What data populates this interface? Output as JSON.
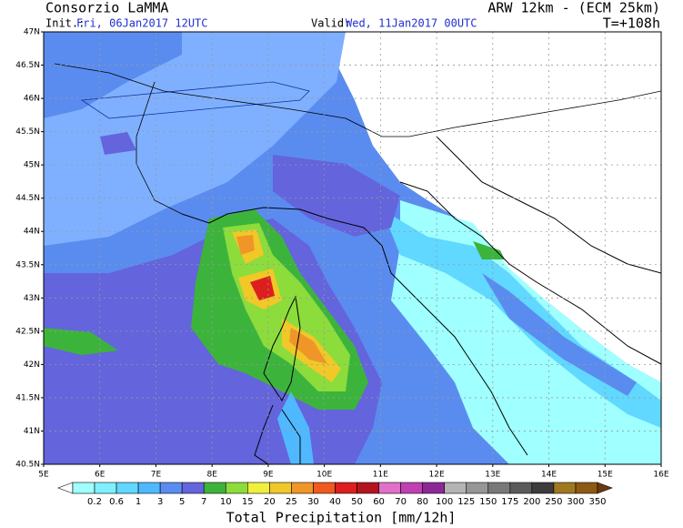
{
  "header": {
    "title": "Consorzio LaMMA",
    "init_label": "Init.:",
    "init": "Fri, 06Jan2017 12UTC",
    "model": "ARW 12km - (ECM 25km)",
    "valid_label": "Valid:",
    "valid": "Wed, 11Jan2017 00UTC",
    "lead": "T=+108h"
  },
  "axes": {
    "lat_labels": [
      "47N",
      "46.5N",
      "46N",
      "45.5N",
      "45N",
      "44.5N",
      "44N",
      "43.5N",
      "43N",
      "42.5N",
      "42N",
      "41.5N",
      "41N",
      "40.5N"
    ],
    "lon_labels": [
      "5E",
      "6E",
      "7E",
      "8E",
      "9E",
      "10E",
      "11E",
      "12E",
      "13E",
      "14E",
      "15E",
      "16E"
    ]
  },
  "colorbar": {
    "labels": [
      "0.2",
      "0.6",
      "1",
      "3",
      "5",
      "7",
      "10",
      "15",
      "20",
      "25",
      "30",
      "40",
      "50",
      "60",
      "70",
      "80",
      "100",
      "125",
      "150",
      "175",
      "200",
      "250",
      "300",
      "350"
    ],
    "colors": [
      "#ffffff",
      "#a0ffff",
      "#80f0ff",
      "#60d8ff",
      "#50b8ff",
      "#5a8cf0",
      "#6464dc",
      "#3cb43c",
      "#8cdc3c",
      "#f0f03c",
      "#f0c828",
      "#f09628",
      "#f05a1e",
      "#dc1e1e",
      "#b4141e",
      "#e070c8",
      "#c040b4",
      "#8c2896",
      "#b4b4b4",
      "#969696",
      "#787878",
      "#5a5a5a",
      "#3c3c3c",
      "#a07820",
      "#8c5a14",
      "#6b3a10"
    ],
    "title": "Total Precipitation [mm/12h]"
  }
}
